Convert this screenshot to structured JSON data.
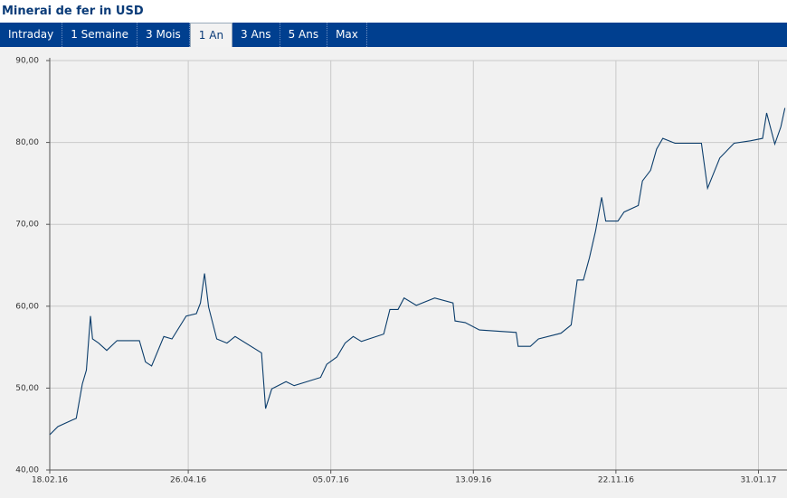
{
  "header": {
    "title": "Minerai de fer in USD"
  },
  "tabs": [
    "Intraday",
    "1 Semaine",
    "3 Mois",
    "1 An",
    "3 Ans",
    "5 Ans",
    "Max"
  ],
  "active_tab": 3,
  "chart_data": {
    "type": "line",
    "x": [
      "18.02.16",
      "22.02.16",
      "29.02.16",
      "02.03.16",
      "05.03.16",
      "07.03.16",
      "09.03.16",
      "10.03.16",
      "13.03.16",
      "17.03.16",
      "22.03.16",
      "02.04.16",
      "05.04.16",
      "08.04.16",
      "14.04.16",
      "18.04.16",
      "25.04.16",
      "30.04.16",
      "02.05.16",
      "04.05.16",
      "06.05.16",
      "10.05.16",
      "15.05.16",
      "19.05.16",
      "01.06.16",
      "03.06.16",
      "06.06.16",
      "13.06.16",
      "17.06.16",
      "30.06.16",
      "03.07.16",
      "08.07.16",
      "12.07.16",
      "16.07.16",
      "20.07.16",
      "31.07.16",
      "03.08.16",
      "07.08.16",
      "10.08.16",
      "16.08.16",
      "25.08.16",
      "03.09.16",
      "04.09.16",
      "09.09.16",
      "16.09.16",
      "04.10.16",
      "05.10.16",
      "11.10.16",
      "15.10.16",
      "26.10.16",
      "31.10.16",
      "03.11.16",
      "06.11.16",
      "09.11.16",
      "12.11.16",
      "15.11.16",
      "17.11.16",
      "23.11.16",
      "26.11.16",
      "03.12.16",
      "05.12.16",
      "09.12.16",
      "12.12.16",
      "15.12.16",
      "21.12.16",
      "03.01.17",
      "06.01.17",
      "12.01.17",
      "19.01.17",
      "27.01.17",
      "02.02.17",
      "04.02.17",
      "08.02.17",
      "11.02.17",
      "13.02.17"
    ],
    "series": [
      {
        "name": "Minerai de fer",
        "color": "#0b3d6b",
        "values": [
          44.3,
          45.3,
          46.1,
          46.3,
          50.5,
          52.2,
          58.8,
          56.0,
          55.5,
          54.6,
          55.8,
          55.8,
          53.2,
          52.7,
          56.3,
          56.0,
          58.8,
          59.1,
          60.4,
          64.0,
          59.9,
          56.0,
          55.5,
          56.3,
          54.3,
          47.5,
          49.9,
          50.8,
          50.3,
          51.3,
          52.9,
          53.8,
          55.5,
          56.3,
          55.7,
          56.6,
          59.6,
          59.6,
          61.0,
          60.1,
          61.0,
          60.4,
          58.2,
          58.0,
          57.1,
          56.8,
          55.1,
          55.1,
          56.0,
          56.7,
          57.7,
          63.2,
          63.2,
          65.9,
          69.2,
          73.3,
          70.4,
          70.4,
          71.5,
          72.3,
          75.3,
          76.6,
          79.2,
          80.5,
          79.9,
          79.9,
          74.4,
          78.1,
          79.9,
          80.2,
          80.5,
          83.6,
          79.8,
          81.9,
          84.2
        ]
      }
    ],
    "xlim": [
      "18.02.16",
      "14.02.17"
    ],
    "xticks": [
      "18.02.16",
      "26.04.16",
      "05.07.16",
      "13.09.16",
      "22.11.16",
      "31.01.17"
    ],
    "ylim": [
      40,
      90
    ],
    "yticks": [
      {
        "value": 40,
        "label": "40,00"
      },
      {
        "value": 50,
        "label": "50,00"
      },
      {
        "value": 60,
        "label": "60,00"
      },
      {
        "value": 70,
        "label": "70,00"
      },
      {
        "value": 80,
        "label": "80,00"
      },
      {
        "value": 90,
        "label": "90,00"
      }
    ],
    "grid": true
  }
}
